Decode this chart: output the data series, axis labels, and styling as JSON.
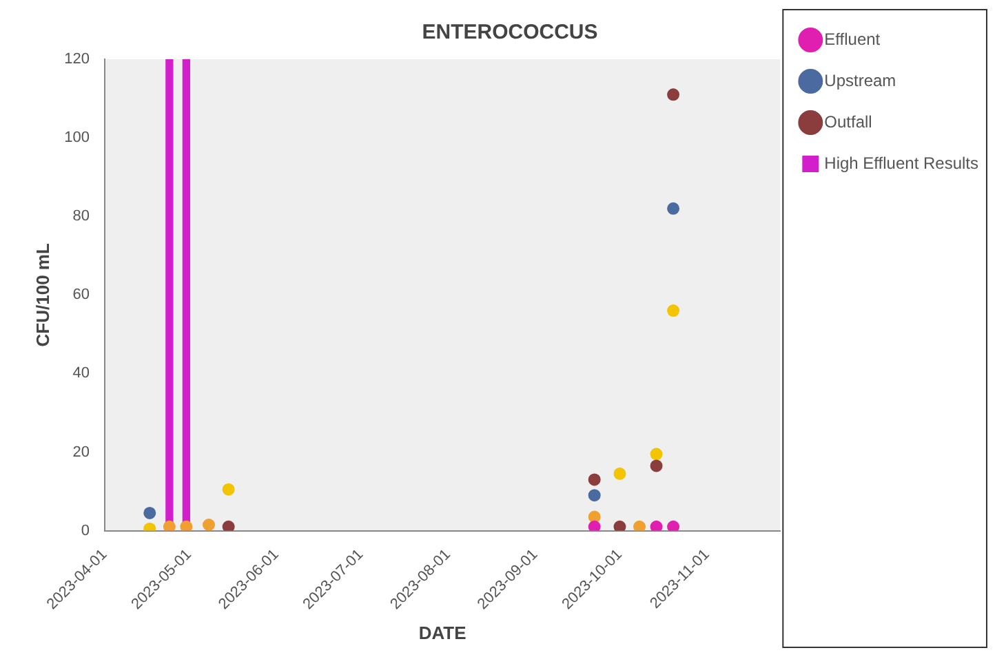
{
  "chart_data": {
    "type": "scatter",
    "title": "ENTEROCOCCUS",
    "xlabel": "DATE",
    "ylabel": "CFU/100 mL",
    "xlim": [
      "2023-04-01",
      "2023-11-27"
    ],
    "xticks": [
      "2023-04-01",
      "2023-05-01",
      "2023-06-01",
      "2023-07-01",
      "2023-08-01",
      "2023-09-01",
      "2023-10-01",
      "2023-11-01"
    ],
    "ylim": [
      0,
      120
    ],
    "yticks": [
      0,
      20,
      40,
      60,
      80,
      100,
      120
    ],
    "grid": false,
    "legend": "right",
    "marker": "circle",
    "series": [
      {
        "name": "High Effluent Results",
        "type": "bar",
        "color": "#d21ecb",
        "x": [
          "2023-04-24",
          "2023-04-30"
        ],
        "values": [
          120,
          120
        ]
      },
      {
        "name": "Effluent",
        "color": "#e01fb0",
        "x": [
          "2023-09-22",
          "2023-10-14",
          "2023-10-20"
        ],
        "values": [
          1,
          1,
          1
        ]
      },
      {
        "name": "Upstream",
        "color": "#4a6aa0",
        "x": [
          "2023-04-17",
          "2023-09-22",
          "2023-10-20"
        ],
        "values": [
          4.5,
          9,
          82
        ]
      },
      {
        "name": "Outfall",
        "color": "#8b3c3c",
        "x": [
          "2023-05-15",
          "2023-09-22",
          "2023-10-01",
          "2023-10-14",
          "2023-10-20"
        ],
        "values": [
          1,
          13,
          1,
          16.5,
          111
        ]
      },
      {
        "color": "#f2c500",
        "x": [
          "2023-04-17",
          "2023-05-15",
          "2023-10-01",
          "2023-10-14",
          "2023-10-20"
        ],
        "values": [
          0.5,
          10.5,
          14.5,
          19.5,
          56
        ]
      },
      {
        "color": "#f0a030",
        "x": [
          "2023-04-24",
          "2023-04-30",
          "2023-05-08",
          "2023-09-22",
          "2023-10-08"
        ],
        "values": [
          1,
          1,
          1.5,
          3.5,
          1
        ]
      }
    ]
  }
}
